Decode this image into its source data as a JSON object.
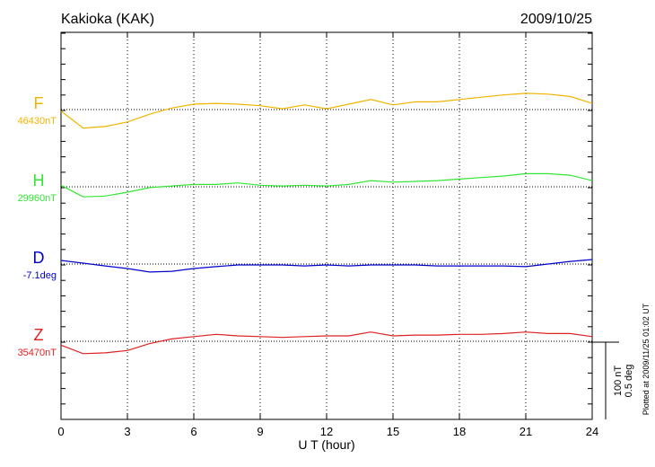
{
  "chart_data": {
    "type": "line",
    "title": "Kakioka (KAK)",
    "date": "2009/10/25",
    "xlabel": "U T (hour)",
    "xlim": [
      0,
      24
    ],
    "xticks": [
      0,
      3,
      6,
      9,
      12,
      15,
      18,
      21,
      24
    ],
    "x": [
      0,
      1,
      2,
      3,
      4,
      5,
      6,
      7,
      8,
      9,
      10,
      11,
      12,
      13,
      14,
      15,
      16,
      17,
      18,
      19,
      20,
      21,
      22,
      23,
      24
    ],
    "grid": true,
    "scale_labels": [
      "100 nT",
      "0.5 deg"
    ],
    "footnote": "Plotted at 2009/11/25 01:02 UT",
    "series": [
      {
        "name": "F",
        "color": "#f0b400",
        "baseline": 46430,
        "baseline_label": "46430nT",
        "span": 100,
        "values": [
          46428,
          46406,
          46408,
          46414,
          46424,
          46432,
          46437,
          46438,
          46437,
          46435,
          46431,
          46436,
          46431,
          46437,
          46443,
          46436,
          46440,
          46440,
          46443,
          46446,
          46449,
          46451,
          46450,
          46447,
          46438
        ]
      },
      {
        "name": "H",
        "color": "#33e633",
        "baseline": 29960,
        "baseline_label": "29960nT",
        "span": 100,
        "values": [
          29962,
          29947,
          29948,
          29953,
          29959,
          29961,
          29963,
          29963,
          29965,
          29962,
          29961,
          29962,
          29961,
          29963,
          29968,
          29966,
          29967,
          29968,
          29970,
          29972,
          29974,
          29977,
          29977,
          29975,
          29968
        ]
      },
      {
        "name": "D",
        "color": "#0000cc",
        "baseline": -7.1,
        "baseline_label": "-7.1deg",
        "span": 0.5,
        "values": [
          -7.077,
          -7.094,
          -7.112,
          -7.129,
          -7.152,
          -7.147,
          -7.129,
          -7.117,
          -7.106,
          -7.106,
          -7.106,
          -7.112,
          -7.106,
          -7.112,
          -7.106,
          -7.106,
          -7.106,
          -7.112,
          -7.112,
          -7.112,
          -7.112,
          -7.117,
          -7.1,
          -7.083,
          -7.071
        ]
      },
      {
        "name": "Z",
        "color": "#dd2222",
        "baseline": 35470,
        "baseline_label": "35470nT",
        "span": 100,
        "values": [
          35465,
          35454,
          35455,
          35458,
          35467,
          35473,
          35476,
          35479,
          35477,
          35476,
          35475,
          35476,
          35477,
          35477,
          35482,
          35477,
          35478,
          35478,
          35479,
          35479,
          35480,
          35482,
          35480,
          35480,
          35476
        ]
      }
    ]
  }
}
